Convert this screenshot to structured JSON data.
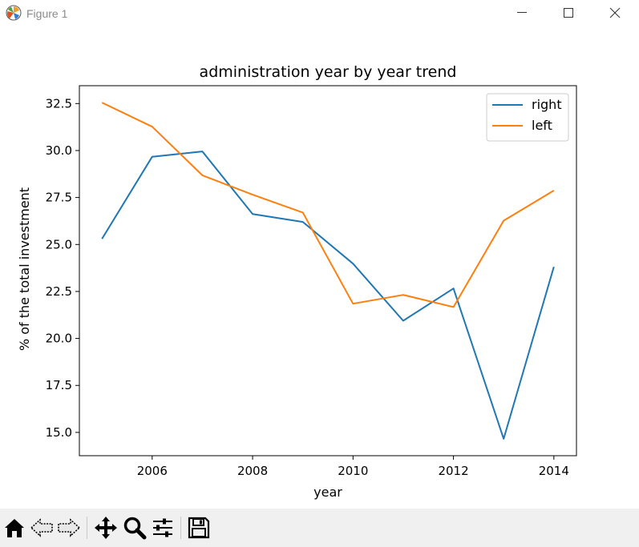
{
  "window": {
    "title": "Figure 1"
  },
  "toolbar": {
    "items": [
      "home-icon",
      "back-icon",
      "forward-icon",
      "pan-icon",
      "zoom-icon",
      "configure-subplots-icon",
      "save-icon"
    ]
  },
  "colors": {
    "right": "#1f77b4",
    "left": "#ff7f0e"
  },
  "chart_data": {
    "type": "line",
    "title": "administration year by year trend",
    "xlabel": "year",
    "ylabel": "% of the total investment",
    "x": [
      2005,
      2006,
      2007,
      2008,
      2009,
      2010,
      2011,
      2012,
      2013,
      2014
    ],
    "series": [
      {
        "name": "right",
        "values": [
          25.3,
          29.67,
          29.95,
          26.62,
          26.2,
          23.98,
          20.94,
          22.66,
          14.66,
          23.81
        ]
      },
      {
        "name": "left",
        "values": [
          32.55,
          31.27,
          28.68,
          27.65,
          26.7,
          21.85,
          22.32,
          21.67,
          26.27,
          27.87
        ]
      }
    ],
    "xlim": [
      2004.55,
      2014.45
    ],
    "ylim": [
      13.76,
      33.45
    ],
    "xticks": [
      2006,
      2008,
      2010,
      2012,
      2014
    ],
    "xtick_labels": [
      "2006",
      "2008",
      "2010",
      "2012",
      "2014"
    ],
    "yticks": [
      15.0,
      17.5,
      20.0,
      22.5,
      25.0,
      27.5,
      30.0,
      32.5
    ],
    "ytick_labels": [
      "15.0",
      "17.5",
      "20.0",
      "22.5",
      "25.0",
      "27.5",
      "30.0",
      "32.5"
    ],
    "grid": false,
    "legend": "upper right"
  }
}
